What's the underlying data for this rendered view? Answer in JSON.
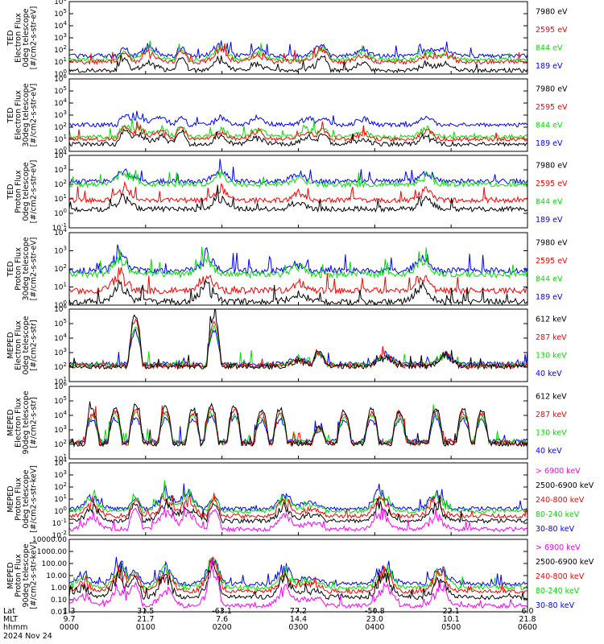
{
  "colors": {
    "black": "#000000",
    "red": "#ff0000",
    "green": "#00e000",
    "blue": "#0000ff",
    "magenta": "#ff00ff",
    "frame": "#000000"
  },
  "ted_electron_channels": [
    {
      "label": "7980 eV",
      "color": "#000000"
    },
    {
      "label": "2595 eV",
      "color": "#ff0000"
    },
    {
      "label": "844 eV",
      "color": "#00e000"
    },
    {
      "label": "189 eV",
      "color": "#0000ff"
    }
  ],
  "ted_proton_channels": [
    {
      "label": "7980 eV",
      "color": "#000000"
    },
    {
      "label": "2595 eV",
      "color": "#ff0000"
    },
    {
      "label": "844 eV",
      "color": "#00e000"
    },
    {
      "label": "189 eV",
      "color": "#0000ff"
    }
  ],
  "meped_electron_channels": [
    {
      "label": "612 keV",
      "color": "#000000"
    },
    {
      "label": "287 keV",
      "color": "#ff0000"
    },
    {
      "label": "130 keV",
      "color": "#00e000"
    },
    {
      "label": "40 keV",
      "color": "#0000ff"
    }
  ],
  "meped_proton_channels": [
    {
      "label": "> 6900 keV",
      "color": "#ff00ff"
    },
    {
      "label": "2500-6900 keV",
      "color": "#000000"
    },
    {
      "label": "240-800 keV",
      "color": "#ff0000"
    },
    {
      "label": "80-240 keV",
      "color": "#00e000"
    },
    {
      "label": "30-80 keV",
      "color": "#0000ff"
    }
  ],
  "chart_data": [
    {
      "type": "line",
      "ylabel_lines": [
        "TED",
        "Electron Flux",
        "0deg telescope",
        "[#/cm2-s-str-eV]"
      ],
      "ylog": true,
      "ylim_exp": [
        0,
        6
      ],
      "tick_labels": [
        "10^0",
        "10^1",
        "10^2",
        "10^3",
        "10^4",
        "10^5",
        "10^6"
      ],
      "channels": "ted_electron_channels",
      "series_bases": [
        0.3,
        1.0,
        1.2,
        1.5
      ],
      "events": [
        [
          0.175,
          0.7
        ],
        [
          0.33,
          0.9
        ],
        [
          0.41,
          0.5
        ],
        [
          0.54,
          0.5
        ],
        [
          0.64,
          0.5
        ],
        [
          0.78,
          0.5
        ],
        [
          0.82,
          0.5
        ]
      ],
      "blobs": [
        [
          0.12,
          0.9
        ],
        [
          0.245,
          1.0
        ],
        [
          0.555,
          0.8
        ]
      ]
    },
    {
      "type": "line",
      "ylabel_lines": [
        "TED",
        "Electron Flux",
        "30deg telescope",
        "[#/cm2-s-str-eV]"
      ],
      "ylog": true,
      "ylim_exp": [
        0,
        6
      ],
      "tick_labels": [
        "10^0",
        "10^1",
        "10^2",
        "10^3",
        "10^4",
        "10^5",
        "10^6"
      ],
      "channels": "ted_electron_channels",
      "series_bases": [
        0.6,
        1.0,
        1.2,
        2.2
      ],
      "events": [
        [
          0.15,
          0.8
        ],
        [
          0.2,
          0.6
        ],
        [
          0.33,
          0.5
        ],
        [
          0.41,
          0.6
        ],
        [
          0.52,
          0.5
        ],
        [
          0.64,
          0.4
        ],
        [
          0.78,
          0.6
        ]
      ],
      "blobs": [
        [
          0.12,
          1.0
        ],
        [
          0.245,
          1.0
        ],
        [
          0.555,
          0.8
        ]
      ]
    },
    {
      "type": "line",
      "ylabel_lines": [
        "TED",
        "Proton Flux",
        "0deg telescope",
        "[#/cm2-s-str-eV]"
      ],
      "ylog": true,
      "ylim_exp": [
        -1,
        4
      ],
      "tick_labels": [
        "10^-1",
        "10^0",
        "10^1",
        "10^2",
        "10^3",
        "10^4"
      ],
      "channels": "ted_proton_channels",
      "series_bases": [
        0.3,
        0.9,
        2.0,
        2.2
      ],
      "events": [
        [
          0.12,
          0.8
        ],
        [
          0.33,
          0.7
        ],
        [
          0.5,
          0.5
        ],
        [
          0.78,
          0.6
        ]
      ],
      "blobs": []
    },
    {
      "type": "line",
      "ylabel_lines": [
        "TED",
        "Proton Flux",
        "30deg telescope",
        "[#/cm2-s-str-eV]"
      ],
      "ylog": true,
      "ylim_exp": [
        0,
        4
      ],
      "tick_labels": [
        "10^0",
        "10^1",
        "10^2",
        "10^3",
        "10^4"
      ],
      "channels": "ted_proton_channels",
      "series_bases": [
        0.2,
        0.8,
        1.7,
        1.9
      ],
      "events": [
        [
          0.11,
          0.9
        ],
        [
          0.3,
          0.8
        ],
        [
          0.5,
          0.4
        ],
        [
          0.77,
          0.7
        ]
      ],
      "blobs": []
    },
    {
      "type": "line",
      "ylabel_lines": [
        "MEPED",
        "Electron Flux",
        "0deg telescope",
        "[#/cm2-s-str]"
      ],
      "ylog": true,
      "ylim_exp": [
        1,
        6
      ],
      "tick_labels": [
        "10^1",
        "10^2",
        "10^3",
        "10^4",
        "10^5",
        "10^6"
      ],
      "channels": "meped_electron_channels",
      "series_bases": [
        2.05,
        2.1,
        2.15,
        2.2
      ],
      "events": [
        [
          0.5,
          0.4
        ],
        [
          0.69,
          0.6
        ],
        [
          0.82,
          0.7
        ]
      ],
      "blobs": [
        [
          0.144,
          3.5
        ],
        [
          0.316,
          3.5
        ],
        [
          0.545,
          1.0
        ]
      ]
    },
    {
      "type": "line",
      "ylabel_lines": [
        "MEPED",
        "Electron Flux",
        "90deg telescope",
        "[#/cm2-s-str]"
      ],
      "ylog": true,
      "ylim_exp": [
        1,
        6
      ],
      "tick_labels": [
        "10^1",
        "10^2",
        "10^3",
        "10^4",
        "10^5",
        "10^6"
      ],
      "channels": "meped_electron_channels",
      "series_bases": [
        2.05,
        2.1,
        2.15,
        2.2
      ],
      "events": [],
      "blobs": [
        [
          0.05,
          2.3
        ],
        [
          0.1,
          2.5
        ],
        [
          0.145,
          2.7
        ],
        [
          0.21,
          2.5
        ],
        [
          0.27,
          2.4
        ],
        [
          0.31,
          2.7
        ],
        [
          0.36,
          2.6
        ],
        [
          0.42,
          2.3
        ],
        [
          0.46,
          2.4
        ],
        [
          0.545,
          1.2
        ],
        [
          0.6,
          2.3
        ],
        [
          0.66,
          2.4
        ],
        [
          0.72,
          2.3
        ],
        [
          0.8,
          2.5
        ],
        [
          0.86,
          2.4
        ],
        [
          0.9,
          2.3
        ]
      ]
    },
    {
      "type": "line",
      "ylabel_lines": [
        "MEPED",
        "Proton Flux",
        "0deg telescope",
        "[#/cm2-s-str-keV]"
      ],
      "ylog": true,
      "ylim_exp": [
        -2,
        4
      ],
      "tick_labels": [
        "10^-2",
        "10^-1",
        "10^0",
        "10^1",
        "10^2",
        "10^3",
        "10^4"
      ],
      "channels": "meped_proton_channels",
      "series_bases": [
        -1.5,
        -0.8,
        -0.4,
        0.0,
        0.2
      ],
      "events": [
        [
          0.05,
          1.0
        ],
        [
          0.21,
          1.3
        ],
        [
          0.26,
          1.2
        ],
        [
          0.47,
          1.1
        ],
        [
          0.52,
          0.5
        ],
        [
          0.68,
          1.4
        ],
        [
          0.8,
          1.2
        ]
      ],
      "blobs": [
        [
          0.144,
          1.6
        ],
        [
          0.316,
          1.6
        ],
        [
          0.545,
          0.4
        ]
      ]
    },
    {
      "type": "line",
      "ylabel_lines": [
        "MEPED",
        "Proton Flux",
        "90deg telescope",
        "[#/cm2-s-str-keV]"
      ],
      "ylog": true,
      "ylim_exp": [
        -2,
        4
      ],
      "tick_labels": [
        "0.01",
        "0.10",
        "1.00",
        "10.00",
        "100.00",
        "1000.00",
        "10000.00"
      ],
      "channels": "meped_proton_channels",
      "series_bases": [
        -1.5,
        -0.8,
        -0.3,
        0.0,
        0.3
      ],
      "events": [
        [
          0.03,
          0.8
        ],
        [
          0.11,
          1.6
        ],
        [
          0.21,
          1.4
        ],
        [
          0.31,
          1.3
        ],
        [
          0.47,
          1.3
        ],
        [
          0.52,
          0.6
        ],
        [
          0.69,
          1.6
        ],
        [
          0.81,
          1.5
        ]
      ],
      "blobs": [
        [
          0.144,
          1.7
        ],
        [
          0.316,
          1.7
        ],
        [
          0.545,
          0.5
        ]
      ]
    }
  ],
  "x_axis": {
    "row_labels": [
      "Lat",
      "MLT",
      "hhmm",
      "2024 Nov 24"
    ],
    "lat": [
      "1.3",
      "31.5",
      "-63.1",
      "77.2",
      "-50.8",
      "22.1",
      "6.0"
    ],
    "mlt": [
      "9.7",
      "21.7",
      "7.6",
      "14.4",
      "23.0",
      "10.1",
      "21.8"
    ],
    "hhmm": [
      "0000",
      "0100",
      "0200",
      "0300",
      "0400",
      "0500",
      "0600"
    ]
  }
}
